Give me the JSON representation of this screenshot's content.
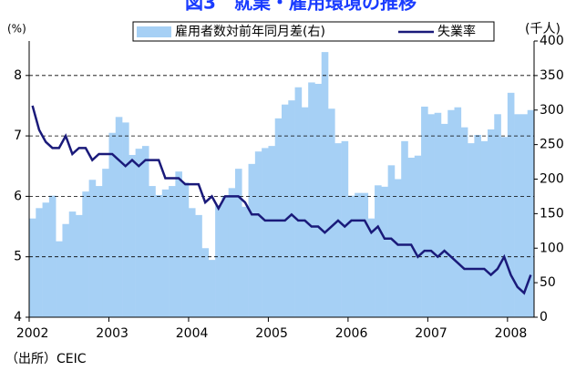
{
  "chart_data": {
    "type": "bar-line",
    "title": "図3　就業・雇用環境の推移",
    "y_label": "(%)",
    "y2_label": "(千人)",
    "source": "（出所）CEIC",
    "categories": [
      "2002",
      null,
      null,
      null,
      null,
      null,
      null,
      null,
      null,
      null,
      null,
      null,
      "2003",
      null,
      null,
      null,
      null,
      null,
      null,
      null,
      null,
      null,
      null,
      null,
      "2004",
      null,
      null,
      null,
      null,
      null,
      null,
      null,
      null,
      null,
      null,
      null,
      "2005",
      null,
      null,
      null,
      null,
      null,
      null,
      null,
      null,
      null,
      null,
      null,
      "2006",
      null,
      null,
      null,
      null,
      null,
      null,
      null,
      null,
      null,
      null,
      null,
      "2007",
      null,
      null,
      null,
      null,
      null,
      null,
      null,
      null,
      null,
      null,
      null,
      "2008",
      null,
      null,
      null
    ],
    "series": [
      {
        "name": "雇用者数対前年同月差(右)",
        "type": "bar",
        "axis": "y2",
        "color": "#a6d0f5",
        "values": [
          143,
          158,
          166,
          176,
          110,
          135,
          153,
          148,
          182,
          199,
          190,
          215,
          267,
          290,
          282,
          235,
          244,
          248,
          190,
          177,
          185,
          190,
          211,
          195,
          158,
          148,
          100,
          83,
          162,
          176,
          187,
          215,
          160,
          222,
          240,
          245,
          248,
          288,
          308,
          314,
          333,
          304,
          340,
          338,
          384,
          302,
          252,
          255,
          176,
          180,
          180,
          143,
          191,
          189,
          220,
          200,
          255,
          231,
          234,
          305,
          294,
          296,
          280,
          300,
          304,
          275,
          252,
          264,
          255,
          272,
          294,
          261,
          325,
          294,
          294,
          300
        ]
      },
      {
        "name": "失業率",
        "type": "line",
        "axis": "y",
        "color": "#1a1a7a",
        "values": [
          7.5,
          7.1,
          6.9,
          6.8,
          6.8,
          7.0,
          6.7,
          6.8,
          6.8,
          6.6,
          6.7,
          6.7,
          6.7,
          6.6,
          6.5,
          6.6,
          6.5,
          6.6,
          6.6,
          6.6,
          6.3,
          6.3,
          6.3,
          6.2,
          6.2,
          6.2,
          5.9,
          6.0,
          5.8,
          6.0,
          6.0,
          6.0,
          5.9,
          5.7,
          5.7,
          5.6,
          5.6,
          5.6,
          5.6,
          5.7,
          5.6,
          5.6,
          5.5,
          5.5,
          5.4,
          5.5,
          5.6,
          5.5,
          5.6,
          5.6,
          5.6,
          5.4,
          5.5,
          5.3,
          5.3,
          5.2,
          5.2,
          5.2,
          5.0,
          5.1,
          5.1,
          5.0,
          5.1,
          5.0,
          4.9,
          4.8,
          4.8,
          4.8,
          4.8,
          4.7,
          4.8,
          5.0,
          4.7,
          4.5,
          4.4,
          4.7
        ]
      }
    ],
    "ylim": [
      4,
      8.57
    ],
    "yticks": [
      4,
      5,
      6,
      7,
      8
    ],
    "y2lim": [
      0,
      400
    ],
    "y2ticks": [
      0,
      50,
      100,
      150,
      200,
      250,
      300,
      350,
      400
    ],
    "grid": true
  }
}
